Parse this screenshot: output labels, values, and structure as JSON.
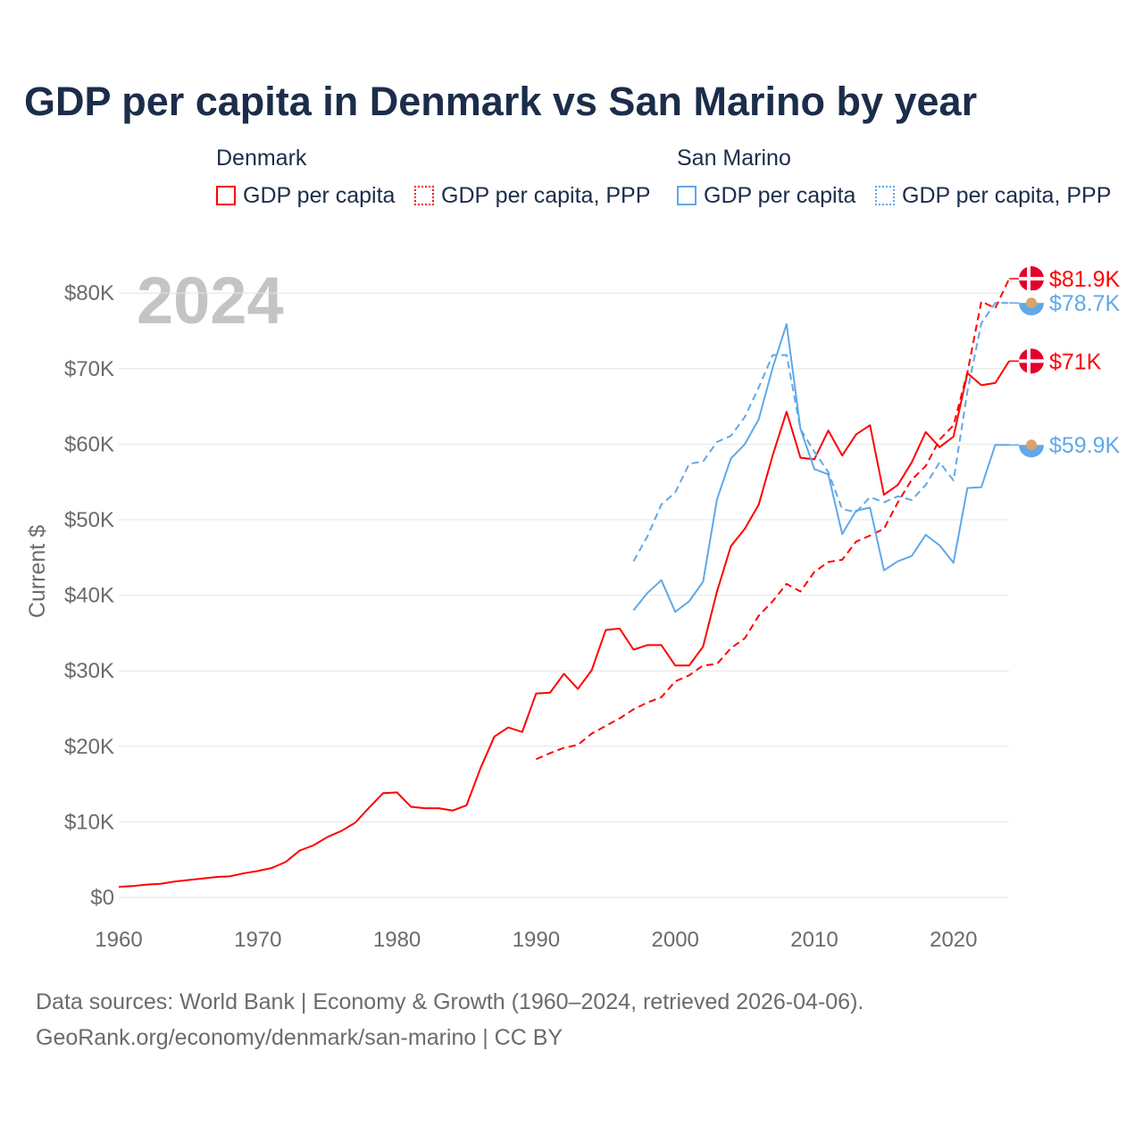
{
  "title": "GDP per capita in Denmark vs San Marino by year",
  "legend": {
    "groups": [
      {
        "name": "Denmark",
        "items": [
          "GDP per capita",
          "GDP per capita, PPP"
        ]
      },
      {
        "name": "San Marino",
        "items": [
          "GDP per capita",
          "GDP per capita, PPP"
        ]
      }
    ]
  },
  "year_watermark": "2024",
  "source_line1": "Data sources: World Bank | Economy & Growth (1960–2024, retrieved 2026-04-06).",
  "source_line2": "GeoRank.org/economy/denmark/san-marino | CC BY",
  "chart_data": {
    "type": "line",
    "title": "GDP per capita in Denmark vs San Marino by year",
    "xlabel": "",
    "ylabel": "Current $",
    "xlim": [
      1960,
      2024
    ],
    "ylim": [
      0,
      80000
    ],
    "x_ticks": [
      1960,
      1970,
      1980,
      1990,
      2000,
      2010,
      2020
    ],
    "x_tick_labels": [
      "1960",
      "1970",
      "1980",
      "1990",
      "2000",
      "2010",
      "2020"
    ],
    "y_ticks": [
      0,
      10000,
      20000,
      30000,
      40000,
      50000,
      60000,
      70000,
      80000
    ],
    "y_tick_labels": [
      "$0",
      "$10K",
      "$20K",
      "$30K",
      "$40K",
      "$50K",
      "$60K",
      "$70K",
      "$80K"
    ],
    "grid": true,
    "legend_placement": "top",
    "series": [
      {
        "name": "Denmark GDP per capita",
        "color": "#ff0000",
        "dash": false,
        "start": 1960,
        "end_label": "$71K",
        "values": [
          1400,
          1500,
          1700,
          1800,
          2100,
          2300,
          2500,
          2700,
          2800,
          3200,
          3500,
          3900,
          4700,
          6200,
          6900,
          8000,
          8800,
          9900,
          11900,
          13800,
          13900,
          12000,
          11800,
          11800,
          11500,
          12200,
          17100,
          21300,
          22500,
          21900,
          27000,
          27100,
          29600,
          27600,
          30100,
          35400,
          35600,
          32800,
          33400,
          33400,
          30700,
          30700,
          33200,
          40500,
          46500,
          48800,
          52000,
          58500,
          64300,
          58200,
          58000,
          61800,
          58500,
          61300,
          62500,
          53300,
          54600,
          57600,
          61600,
          59600,
          61000,
          69400,
          67800,
          68100,
          71000
        ]
      },
      {
        "name": "Denmark GDP per capita, PPP",
        "color": "#ff0000",
        "dash": true,
        "start": 1990,
        "end_label": "$81.9K",
        "values": [
          18300,
          19100,
          19800,
          20200,
          21700,
          22700,
          23700,
          24900,
          25800,
          26500,
          28600,
          29400,
          30700,
          30900,
          33000,
          34300,
          37300,
          39200,
          41500,
          40500,
          43100,
          44400,
          44700,
          47100,
          47900,
          48800,
          52300,
          55300,
          57100,
          60600,
          62500,
          69500,
          78900,
          78000,
          81900
        ]
      },
      {
        "name": "San Marino GDP per capita",
        "color": "#5fa8ea",
        "dash": false,
        "start": 1997,
        "end_label": "$59.9K",
        "values": [
          38000,
          40300,
          42000,
          37800,
          39200,
          41800,
          52700,
          58100,
          60000,
          63300,
          70100,
          75900,
          62000,
          56700,
          56000,
          48100,
          51200,
          51600,
          43300,
          44500,
          45200,
          48000,
          46600,
          44300,
          54200,
          54300,
          59900,
          59900
        ]
      },
      {
        "name": "San Marino GDP per capita, PPP",
        "color": "#5fa8ea",
        "dash": true,
        "start": 1997,
        "end_label": "$78.7K",
        "values": [
          44500,
          47800,
          52000,
          53600,
          57400,
          57700,
          60300,
          61100,
          63600,
          67500,
          71800,
          71800,
          62000,
          59000,
          56300,
          51400,
          51000,
          53000,
          52300,
          53100,
          52600,
          54600,
          57600,
          55200,
          67000,
          76000,
          78700,
          78700
        ]
      }
    ]
  }
}
